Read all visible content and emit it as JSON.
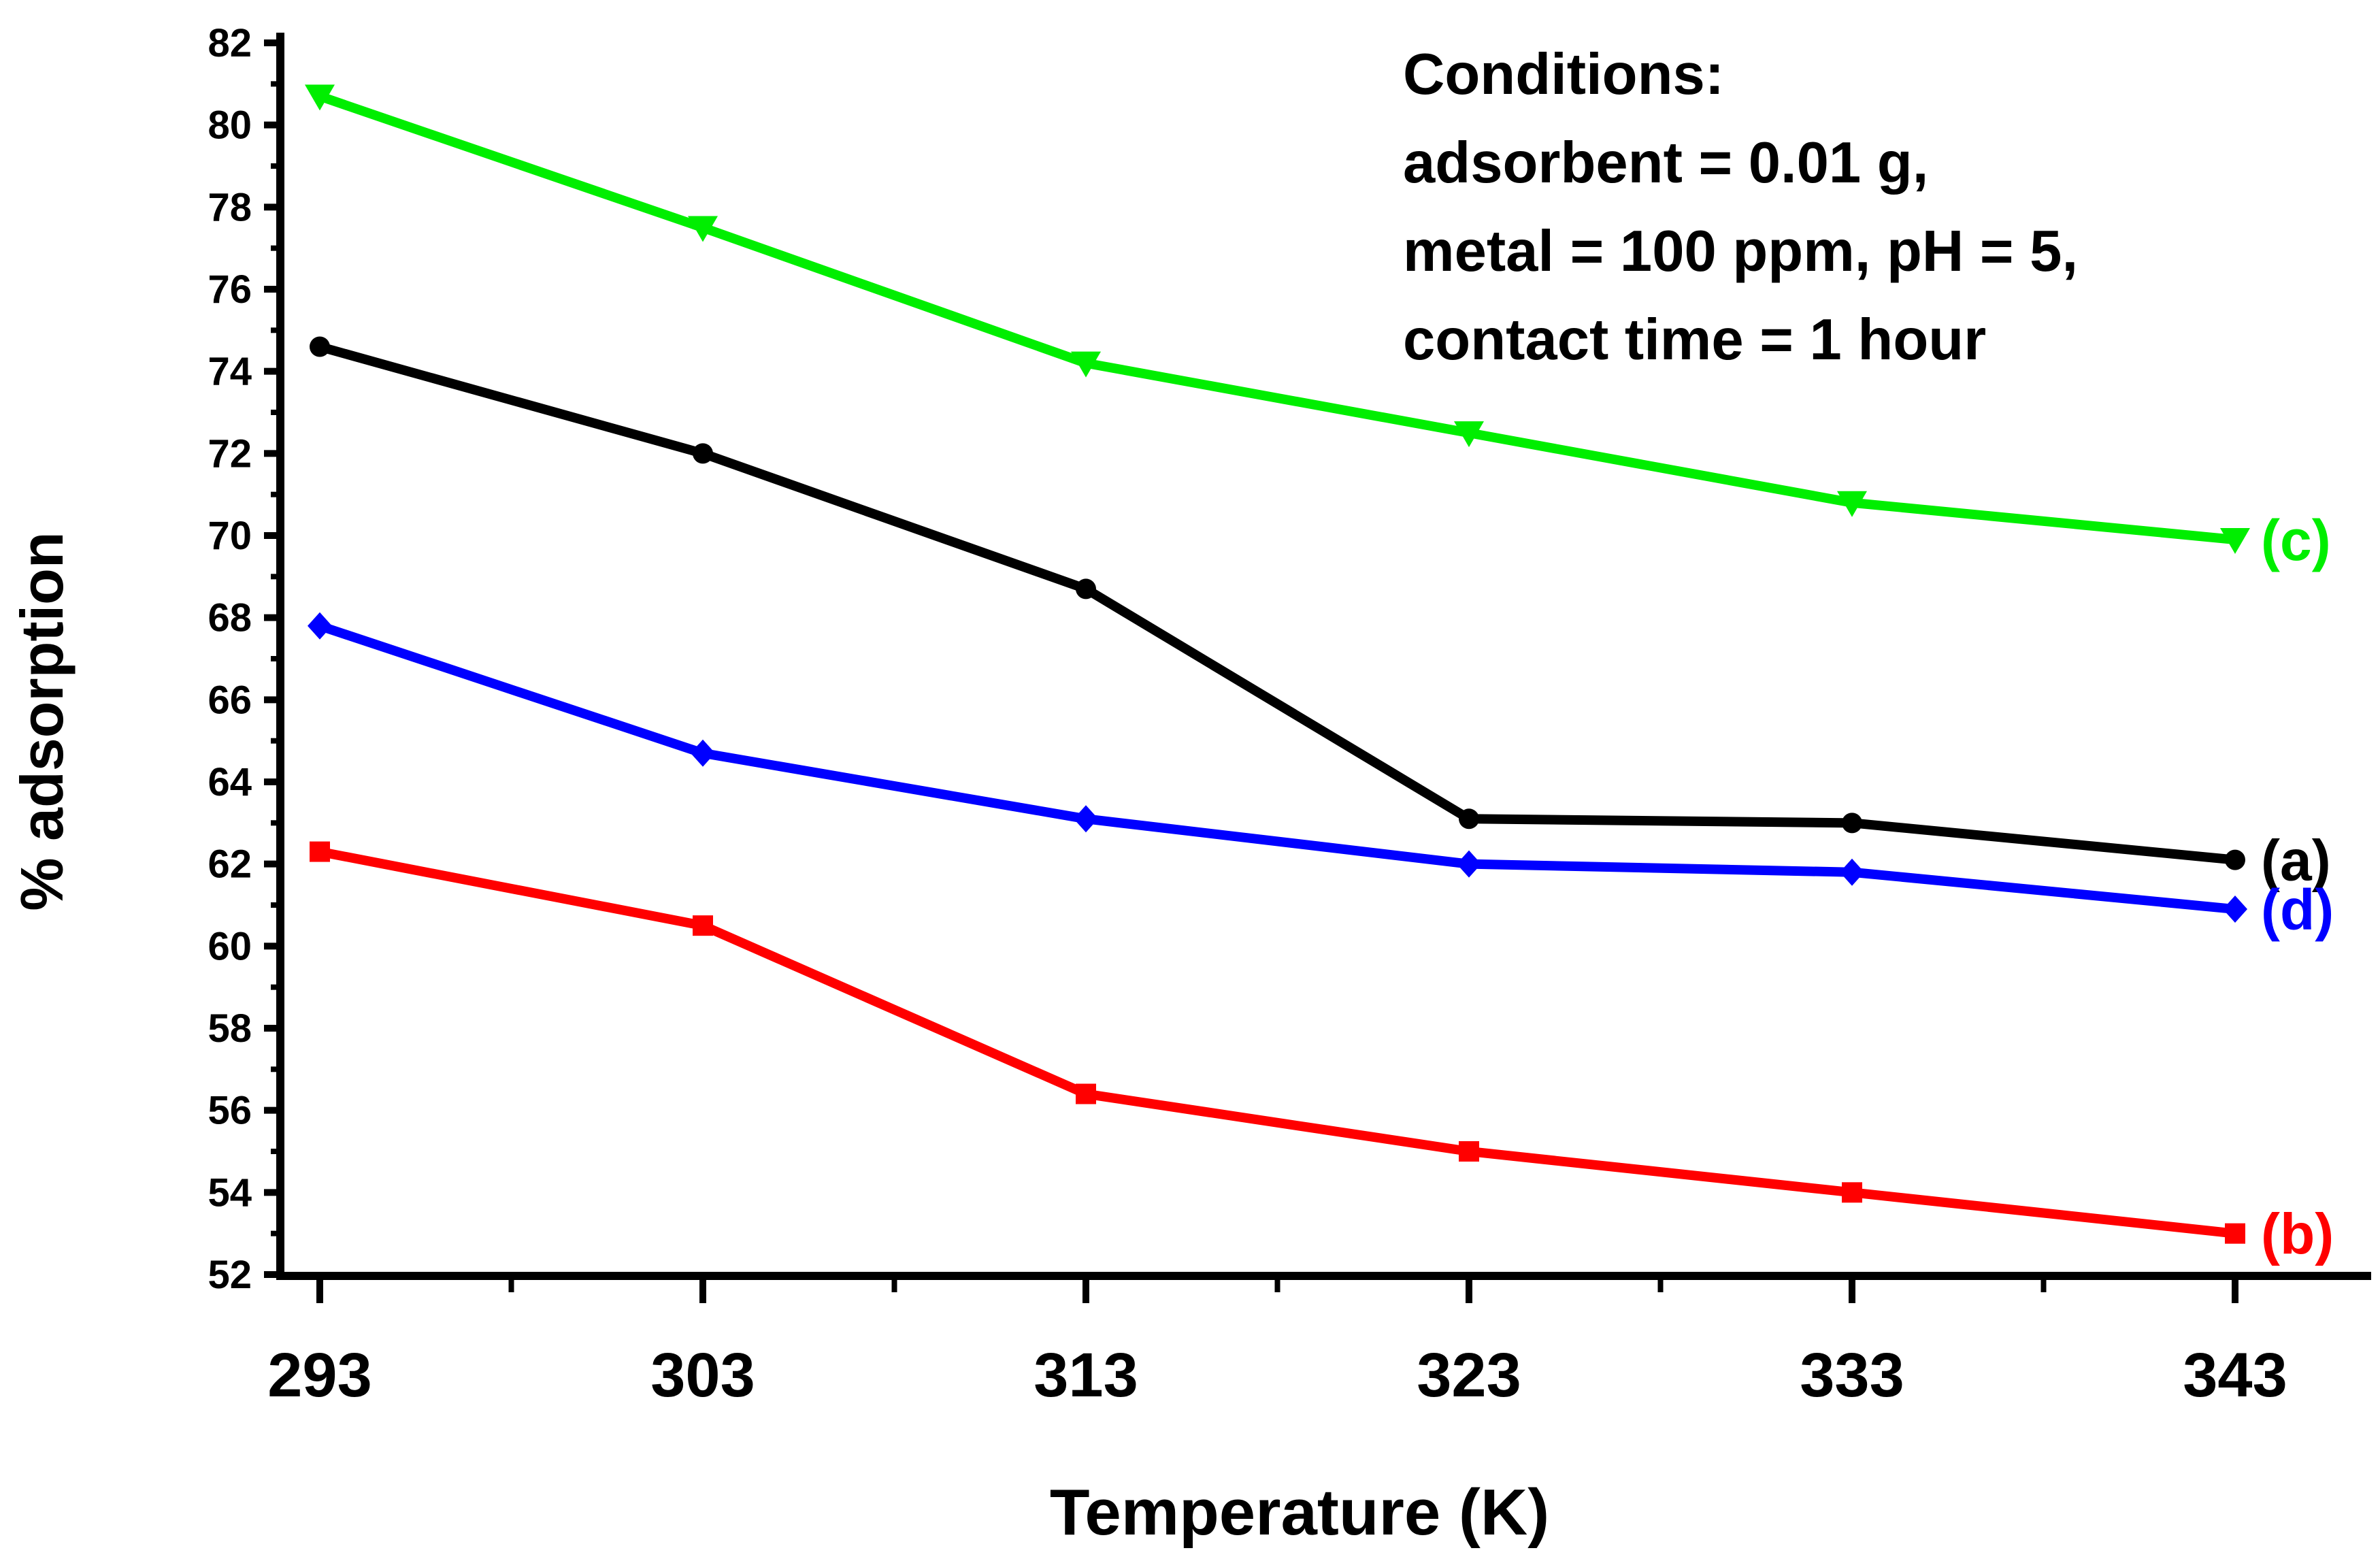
{
  "chart_data": {
    "type": "line",
    "title": "",
    "xlabel": "Temperature (K)",
    "ylabel": "% adsorption",
    "x": [
      293,
      303,
      313,
      323,
      333,
      343
    ],
    "xticks": [
      "293",
      "303",
      "313",
      "323",
      "333",
      "343"
    ],
    "ylim": [
      52,
      82
    ],
    "yticks": [
      "52",
      "54",
      "56",
      "58",
      "60",
      "62",
      "64",
      "66",
      "68",
      "70",
      "72",
      "74",
      "76",
      "78",
      "80",
      "82"
    ],
    "grid": false,
    "series": [
      {
        "name": "(a)",
        "color": "#000000",
        "marker": "circle",
        "values": [
          74.6,
          72.0,
          68.7,
          63.1,
          63.0,
          62.1
        ]
      },
      {
        "name": "(b)",
        "color": "#ff0000",
        "marker": "square",
        "values": [
          62.3,
          60.5,
          56.4,
          55.0,
          54.0,
          53.0
        ]
      },
      {
        "name": "(c)",
        "color": "#00ee00",
        "marker": "triangle-down",
        "values": [
          80.7,
          77.5,
          74.2,
          72.5,
          70.8,
          69.9
        ]
      },
      {
        "name": "(d)",
        "color": "#0000ff",
        "marker": "diamond",
        "values": [
          67.8,
          64.7,
          63.1,
          62.0,
          61.8,
          60.9
        ]
      }
    ],
    "annotation": {
      "lines": [
        "Conditions:",
        "adsorbent = 0.01 g,",
        "metal = 100 ppm, pH = 5,",
        "contact time = 1 hour"
      ]
    }
  }
}
